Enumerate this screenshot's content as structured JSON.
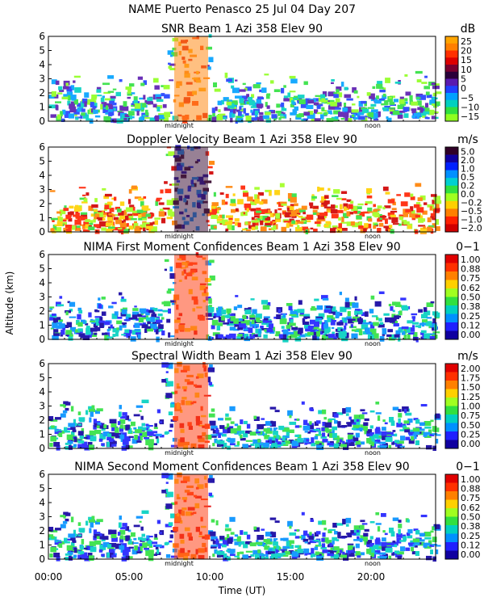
{
  "figure": {
    "title": "NAME Puerto Penasco  25 Jul 04 Day 207",
    "ylabel": "Altitude (km)",
    "xlabel": "Time (UT)",
    "x_ticks": [
      "00:00",
      "05:00",
      "10:00",
      "15:00",
      "20:00"
    ],
    "x_tick_values": [
      0,
      5,
      10,
      15,
      20
    ],
    "markers": {
      "midnight": "midnight",
      "noon": "noon"
    },
    "marker_values": {
      "midnight": 8.1,
      "noon": 20.1
    }
  },
  "chart_data": [
    {
      "type": "heatmap",
      "title": "SNR Beam 1 Azi 358 Elev 90",
      "unit": "dB",
      "xlim": [
        0,
        24
      ],
      "ylim": [
        0,
        6
      ],
      "y_ticks": [
        "0",
        "1",
        "2",
        "3",
        "4",
        "5",
        "6"
      ],
      "colorbar": {
        "labels": [
          "25",
          "20",
          "15",
          "10",
          "5",
          "0",
          "−5",
          "−10",
          "−15"
        ],
        "colors": [
          "#ffa500",
          "#ff7f00",
          "#ff3000",
          "#dd0000",
          "#7a0030",
          "#2a003a",
          "#5a1ab0",
          "#2040ff",
          "#00a0ff",
          "#00d0c0",
          "#30e040",
          "#90ff20"
        ]
      }
    },
    {
      "type": "heatmap",
      "title": "Doppler Velocity Beam 1 Azi 358 Elev 90",
      "unit": "m/s",
      "xlim": [
        0,
        24
      ],
      "ylim": [
        0,
        6
      ],
      "y_ticks": [
        "0",
        "1",
        "2",
        "3",
        "4",
        "5",
        "6"
      ],
      "colorbar": {
        "labels": [
          "5.0",
          "2.0",
          "1.0",
          "0.5",
          "0.2",
          "0.0",
          "−0.2",
          "−0.5",
          "−1.0",
          "−2.0"
        ],
        "colors": [
          "#300028",
          "#1000a0",
          "#0020ff",
          "#0090ff",
          "#00d0d0",
          "#30e040",
          "#a0ff20",
          "#ffd000",
          "#ff8000",
          "#ff2000",
          "#d00000"
        ]
      }
    },
    {
      "type": "heatmap",
      "title": "NIMA First Moment Confidences Beam 1 Azi 358 Elev 90",
      "unit": "0−1",
      "xlim": [
        0,
        24
      ],
      "ylim": [
        0,
        6
      ],
      "y_ticks": [
        "0",
        "1",
        "2",
        "3",
        "4",
        "5",
        "6"
      ],
      "colorbar": {
        "labels": [
          "1.00",
          "0.88",
          "0.75",
          "0.62",
          "0.50",
          "0.38",
          "0.25",
          "0.12",
          "0.00"
        ],
        "colors": [
          "#e00000",
          "#ff3000",
          "#ff8000",
          "#ffd000",
          "#a0ff20",
          "#30e040",
          "#00d0c0",
          "#0090ff",
          "#2020ff",
          "#1000a0"
        ]
      }
    },
    {
      "type": "heatmap",
      "title": "Spectral Width Beam 1 Azi 358 Elev 90",
      "unit": "m/s",
      "xlim": [
        0,
        24
      ],
      "ylim": [
        0,
        6
      ],
      "y_ticks": [
        "0",
        "1",
        "2",
        "3",
        "4",
        "5",
        "6"
      ],
      "colorbar": {
        "labels": [
          "2.00",
          "1.75",
          "1.50",
          "1.25",
          "1.00",
          "0.75",
          "0.50",
          "0.25",
          "0.00"
        ],
        "colors": [
          "#e00000",
          "#ff3000",
          "#ff8000",
          "#ffd000",
          "#a0ff20",
          "#30e040",
          "#00d0c0",
          "#0090ff",
          "#2020ff",
          "#1000a0"
        ]
      }
    },
    {
      "type": "heatmap",
      "title": "NIMA Second Moment Confidences Beam 1 Azi 358 Elev 90",
      "unit": "0−1",
      "xlim": [
        0,
        24
      ],
      "ylim": [
        0,
        6
      ],
      "y_ticks": [
        "0",
        "1",
        "2",
        "3",
        "4",
        "5",
        "6"
      ],
      "colorbar": {
        "labels": [
          "1.00",
          "0.88",
          "0.75",
          "0.62",
          "0.50",
          "0.38",
          "0.25",
          "0.12",
          "0.00"
        ],
        "colors": [
          "#e00000",
          "#ff3000",
          "#ff8000",
          "#ffd000",
          "#a0ff20",
          "#30e040",
          "#00d0c0",
          "#0090ff",
          "#2020ff",
          "#1000a0"
        ]
      }
    }
  ]
}
